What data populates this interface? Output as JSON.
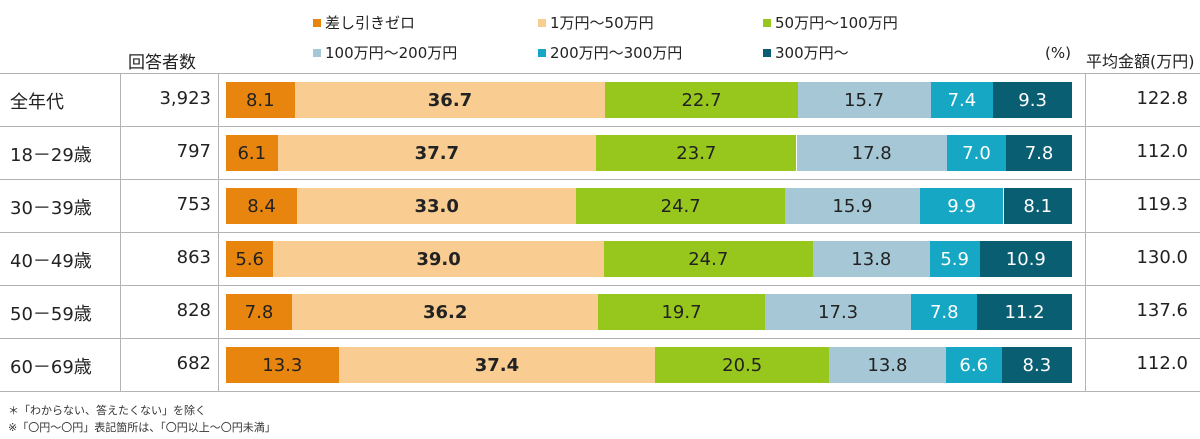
{
  "legend": [
    {
      "label": "差し引きゼロ",
      "color": "#e8850f"
    },
    {
      "label": "1万円～50万円",
      "color": "#f9cd91"
    },
    {
      "label": "50万円～100万円",
      "color": "#97c71d"
    },
    {
      "label": "100万円～200万円",
      "color": "#a6c8d6"
    },
    {
      "label": "200万円～300万円",
      "color": "#16a7c4"
    },
    {
      "label": "300万円～",
      "color": "#0a5e72"
    }
  ],
  "headers": {
    "count": "回答者数",
    "unit": "(%)",
    "avg": "平均金額(万円)"
  },
  "chart_data": {
    "type": "bar",
    "stacked": true,
    "orientation": "horizontal",
    "unit": "%",
    "categories": [
      "全年代",
      "18－29歳",
      "30－39歳",
      "40－49歳",
      "50－59歳",
      "60－69歳"
    ],
    "value_labels": [
      [
        "8.1",
        "36.7",
        "22.7",
        "15.7",
        "7.4",
        "9.3"
      ],
      [
        "6.1",
        "37.7",
        "23.7",
        "17.8",
        "7.0",
        "7.8"
      ],
      [
        "8.4",
        "33.0",
        "24.7",
        "15.9",
        "9.9",
        "8.1"
      ],
      [
        "5.6",
        "39.0",
        "24.7",
        "13.8",
        "5.9",
        "10.9"
      ],
      [
        "7.8",
        "36.2",
        "19.7",
        "17.3",
        "7.8",
        "11.2"
      ],
      [
        "13.3",
        "37.4",
        "20.5",
        "13.8",
        "6.6",
        "8.3"
      ]
    ],
    "series": [
      {
        "name": "差し引きゼロ",
        "values": [
          8.1,
          6.1,
          8.4,
          5.6,
          7.8,
          13.3
        ]
      },
      {
        "name": "1万円～50万円",
        "values": [
          36.7,
          37.7,
          33.0,
          39.0,
          36.2,
          37.4
        ]
      },
      {
        "name": "50万円～100万円",
        "values": [
          22.7,
          23.7,
          24.7,
          24.7,
          19.7,
          20.5
        ]
      },
      {
        "name": "100万円～200万円",
        "values": [
          15.7,
          17.8,
          15.9,
          13.8,
          17.3,
          13.8
        ]
      },
      {
        "name": "200万円～300万円",
        "values": [
          7.4,
          7.0,
          9.9,
          5.9,
          7.8,
          6.6
        ]
      },
      {
        "name": "300万円～",
        "values": [
          9.3,
          7.8,
          8.1,
          10.9,
          11.2,
          8.3
        ]
      }
    ],
    "respondents": [
      "3,923",
      "797",
      "753",
      "863",
      "828",
      "682"
    ],
    "average": [
      "122.8",
      "112.0",
      "119.3",
      "130.0",
      "137.6",
      "112.0"
    ]
  },
  "notes": [
    "＊「わからない、答えたくない」を除く",
    "※「〇円～〇円」表記箇所は、「〇円以上～〇円未満」"
  ]
}
